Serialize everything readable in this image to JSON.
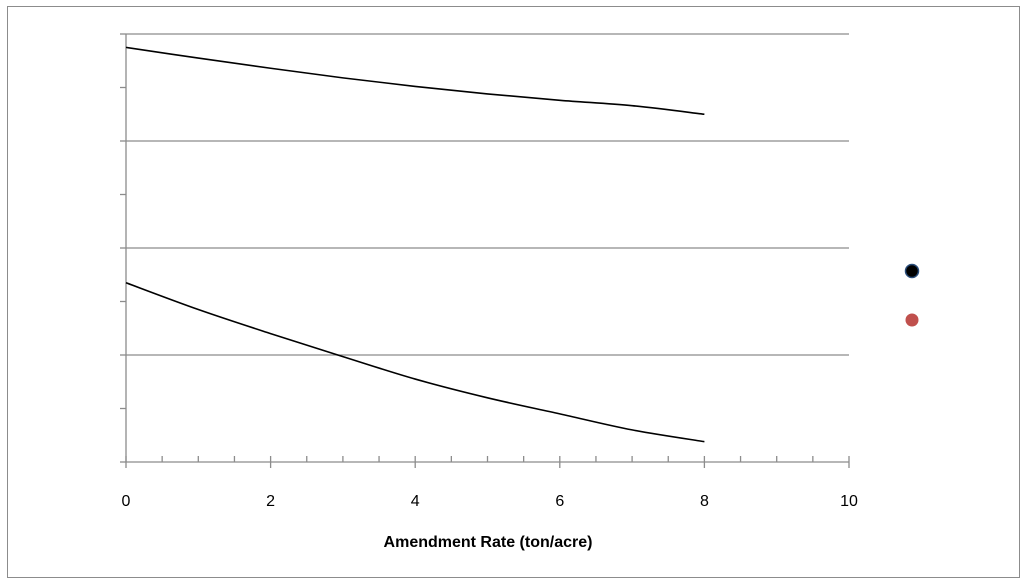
{
  "chart_data": {
    "type": "line",
    "title": "",
    "xlabel": "Amendment Rate (ton/acre)",
    "ylabel": "",
    "xlim": [
      0,
      10
    ],
    "ylim": [
      0,
      8
    ],
    "x_ticks": [
      "0",
      "2",
      "4",
      "6",
      "8",
      "10"
    ],
    "grid": true,
    "legend_position": "right",
    "series": [
      {
        "color": "#000000",
        "marker_color": "#000000",
        "x": [
          0,
          1,
          2,
          3,
          4,
          5,
          6,
          7,
          8
        ],
        "values": [
          7.75,
          7.55,
          7.36,
          7.18,
          7.02,
          6.88,
          6.76,
          6.66,
          6.5
        ]
      },
      {
        "color": "#000000",
        "marker_color": "#c0504d",
        "x": [
          0,
          1,
          2,
          3,
          4,
          5,
          6,
          7,
          8
        ],
        "values": [
          3.35,
          2.85,
          2.4,
          1.97,
          1.55,
          1.2,
          0.9,
          0.6,
          0.38
        ]
      }
    ]
  }
}
